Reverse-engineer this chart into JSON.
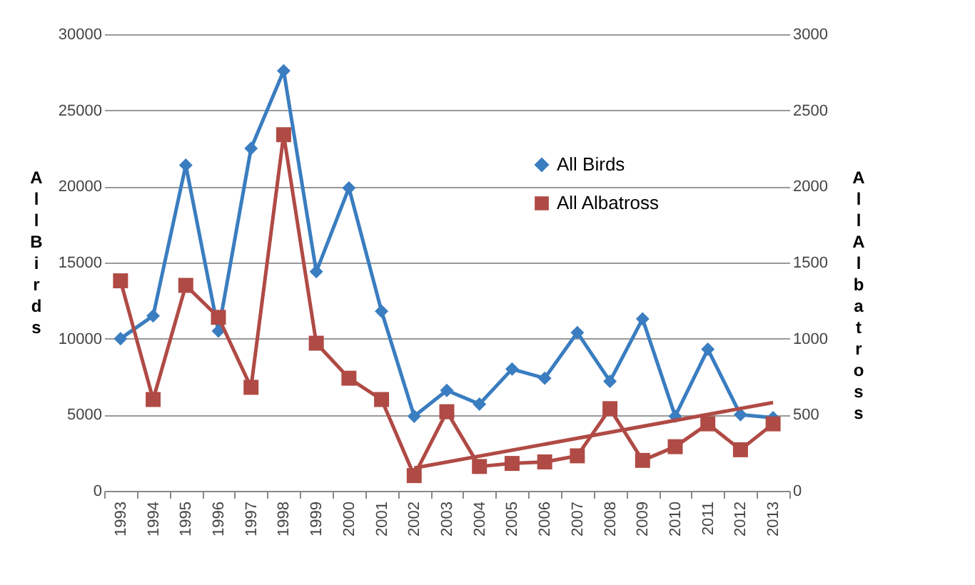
{
  "chart_data": {
    "type": "line",
    "categories": [
      "1993",
      "1994",
      "1995",
      "1996",
      "1997",
      "1998",
      "1999",
      "2000",
      "2001",
      "2002",
      "2003",
      "2004",
      "2005",
      "2006",
      "2007",
      "2008",
      "2009",
      "2010",
      "2011",
      "2012",
      "2013"
    ],
    "series": [
      {
        "name": "All Birds",
        "color": "#3a7dc0",
        "marker": "diamond",
        "values": [
          10000,
          11500,
          21400,
          10500,
          22500,
          27600,
          14400,
          19900,
          11800,
          4900,
          6600,
          5700,
          8000,
          7400,
          10400,
          7200,
          11300,
          4900,
          9300,
          5000,
          4800
        ]
      },
      {
        "name": "All Albatross",
        "color": "#b04a45",
        "marker": "square",
        "axis": "y2",
        "values": [
          1380,
          600,
          1350,
          1140,
          680,
          2340,
          970,
          740,
          600,
          100,
          520,
          160,
          180,
          190,
          230,
          540,
          200,
          290,
          440,
          270,
          440
        ]
      },
      {
        "type": "line",
        "color": "#b04a45",
        "marker": "none",
        "axis": "y2",
        "values": [
          null,
          null,
          null,
          null,
          null,
          null,
          null,
          null,
          null,
          150,
          null,
          null,
          null,
          null,
          null,
          null,
          null,
          null,
          null,
          null,
          580
        ]
      }
    ],
    "ylabel": "All Birds",
    "y2label": "All Albatross",
    "ylim": [
      0,
      30000
    ],
    "yticks": [
      0,
      5000,
      10000,
      15000,
      20000,
      25000,
      30000
    ],
    "y2lim": [
      0,
      3000
    ],
    "y2ticks": [
      0,
      500,
      1000,
      1500,
      2000,
      2500,
      3000
    ],
    "grid": "y",
    "legend": "top right",
    "line_style": "solid"
  }
}
